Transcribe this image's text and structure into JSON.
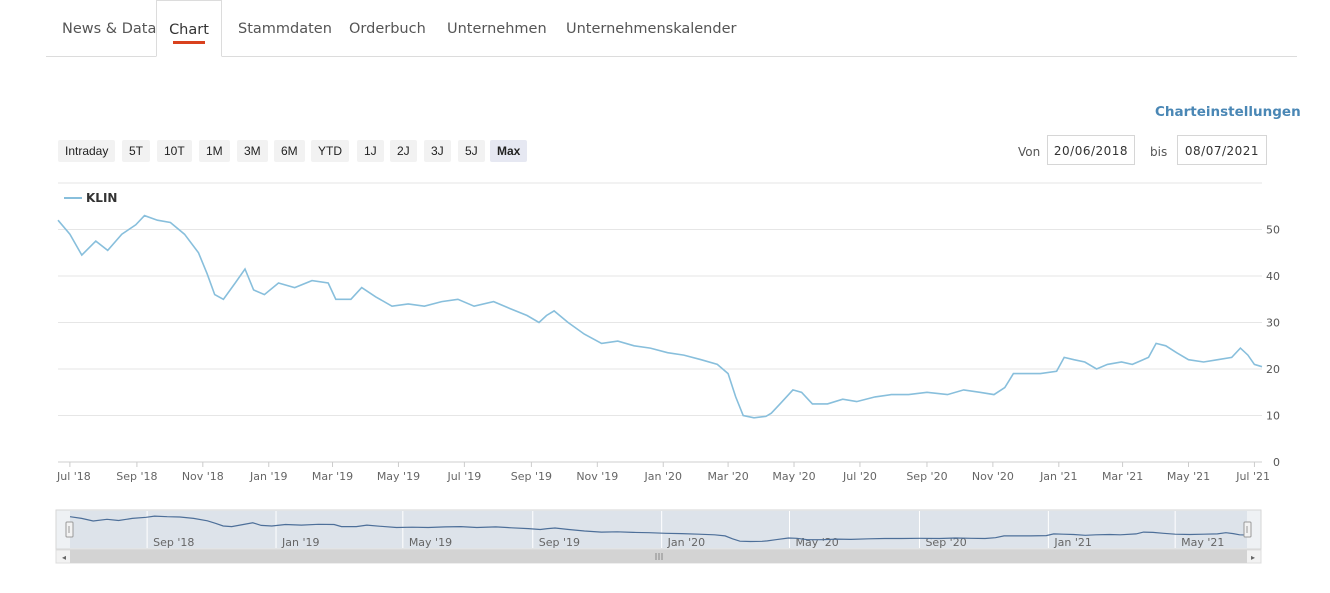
{
  "tabs": [
    {
      "label": "News & Data"
    },
    {
      "label": "Chart"
    },
    {
      "label": "Stammdaten"
    },
    {
      "label": "Orderbuch"
    },
    {
      "label": "Unternehmen"
    },
    {
      "label": "Unternehmenskalender"
    }
  ],
  "active_tab": "Chart",
  "settings_label": "Charteinstellungen",
  "ranges": [
    "Intraday",
    "5T",
    "10T",
    "1M",
    "3M",
    "6M",
    "YTD",
    "1J",
    "2J",
    "3J",
    "5J",
    "Max"
  ],
  "active_range": "Max",
  "date_range": {
    "from_label": "Von",
    "from": "20/06/2018",
    "to_label": "bis",
    "to": "08/07/2021"
  },
  "colors": {
    "line": "#88bfdc",
    "active_underline": "#d9411e",
    "link": "#4a87b5",
    "navigator_mask": "#dde3ea",
    "navigator_line": "#4d6f99"
  },
  "chart_data": {
    "type": "line",
    "legend": "KLIN",
    "legend_position": "top-left",
    "x_start": "2018-06-20",
    "x_end": "2021-07-08",
    "x_ticks": [
      "Jul '18",
      "Sep '18",
      "Nov '18",
      "Jan '19",
      "Mar '19",
      "May '19",
      "Jul '19",
      "Sep '19",
      "Nov '19",
      "Jan '20",
      "Mar '20",
      "May '20",
      "Jul '20",
      "Sep '20",
      "Nov '20",
      "Jan '21",
      "Mar '21",
      "May '21",
      "Jul '21"
    ],
    "y_ticks": [
      0,
      10,
      20,
      30,
      40,
      50
    ],
    "ylim": [
      0,
      60
    ],
    "grid": true,
    "navigator_ticks": [
      "Sep '18",
      "Jan '19",
      "May '19",
      "Sep '19",
      "Jan '20",
      "May '20",
      "Sep '20",
      "Jan '21",
      "May '21"
    ],
    "series": [
      {
        "name": "KLIN",
        "points": [
          [
            "2018-06-20",
            52
          ],
          [
            "2018-07-01",
            49
          ],
          [
            "2018-07-12",
            44.5
          ],
          [
            "2018-07-25",
            47.5
          ],
          [
            "2018-08-05",
            45.5
          ],
          [
            "2018-08-18",
            49
          ],
          [
            "2018-08-31",
            51
          ],
          [
            "2018-09-08",
            53
          ],
          [
            "2018-09-20",
            52
          ],
          [
            "2018-10-02",
            51.5
          ],
          [
            "2018-10-15",
            49
          ],
          [
            "2018-10-28",
            45
          ],
          [
            "2018-11-05",
            40.5
          ],
          [
            "2018-11-12",
            36
          ],
          [
            "2018-11-20",
            35
          ],
          [
            "2018-12-01",
            38.5
          ],
          [
            "2018-12-10",
            41.5
          ],
          [
            "2018-12-18",
            37
          ],
          [
            "2018-12-28",
            36
          ],
          [
            "2019-01-10",
            38.5
          ],
          [
            "2019-01-25",
            37.5
          ],
          [
            "2019-02-10",
            39
          ],
          [
            "2019-02-25",
            38.5
          ],
          [
            "2019-03-04",
            35
          ],
          [
            "2019-03-18",
            35
          ],
          [
            "2019-03-28",
            37.5
          ],
          [
            "2019-04-10",
            35.5
          ],
          [
            "2019-04-25",
            33.5
          ],
          [
            "2019-05-10",
            34
          ],
          [
            "2019-05-25",
            33.5
          ],
          [
            "2019-06-10",
            34.5
          ],
          [
            "2019-06-25",
            35
          ],
          [
            "2019-07-10",
            33.5
          ],
          [
            "2019-07-28",
            34.5
          ],
          [
            "2019-08-12",
            33
          ],
          [
            "2019-08-28",
            31.5
          ],
          [
            "2019-09-08",
            30
          ],
          [
            "2019-09-15",
            31.5
          ],
          [
            "2019-09-22",
            32.5
          ],
          [
            "2019-10-05",
            30
          ],
          [
            "2019-10-20",
            27.5
          ],
          [
            "2019-11-05",
            25.5
          ],
          [
            "2019-11-20",
            26
          ],
          [
            "2019-12-05",
            25
          ],
          [
            "2019-12-20",
            24.5
          ],
          [
            "2020-01-05",
            23.5
          ],
          [
            "2020-01-20",
            23
          ],
          [
            "2020-02-05",
            22
          ],
          [
            "2020-02-20",
            21
          ],
          [
            "2020-03-01",
            19
          ],
          [
            "2020-03-08",
            14
          ],
          [
            "2020-03-15",
            10
          ],
          [
            "2020-03-25",
            9.5
          ],
          [
            "2020-04-05",
            9.8
          ],
          [
            "2020-04-10",
            10.5
          ],
          [
            "2020-04-18",
            12.5
          ],
          [
            "2020-04-30",
            15.5
          ],
          [
            "2020-05-08",
            15
          ],
          [
            "2020-05-18",
            12.5
          ],
          [
            "2020-06-01",
            12.5
          ],
          [
            "2020-06-15",
            13.5
          ],
          [
            "2020-06-28",
            13
          ],
          [
            "2020-07-15",
            14
          ],
          [
            "2020-07-30",
            14.5
          ],
          [
            "2020-08-15",
            14.5
          ],
          [
            "2020-09-01",
            15
          ],
          [
            "2020-09-20",
            14.5
          ],
          [
            "2020-10-05",
            15.5
          ],
          [
            "2020-10-20",
            15
          ],
          [
            "2020-11-02",
            14.5
          ],
          [
            "2020-11-12",
            16
          ],
          [
            "2020-11-20",
            19
          ],
          [
            "2020-12-01",
            19
          ],
          [
            "2020-12-15",
            19
          ],
          [
            "2020-12-30",
            19.5
          ],
          [
            "2021-01-06",
            22.5
          ],
          [
            "2021-01-15",
            22
          ],
          [
            "2021-01-25",
            21.5
          ],
          [
            "2021-02-05",
            20
          ],
          [
            "2021-02-15",
            21
          ],
          [
            "2021-02-28",
            21.5
          ],
          [
            "2021-03-10",
            21
          ],
          [
            "2021-03-25",
            22.5
          ],
          [
            "2021-04-01",
            25.5
          ],
          [
            "2021-04-10",
            25
          ],
          [
            "2021-04-20",
            23.5
          ],
          [
            "2021-05-01",
            22
          ],
          [
            "2021-05-15",
            21.5
          ],
          [
            "2021-05-28",
            22
          ],
          [
            "2021-06-10",
            22.5
          ],
          [
            "2021-06-18",
            24.5
          ],
          [
            "2021-06-25",
            23
          ],
          [
            "2021-07-01",
            21
          ],
          [
            "2021-07-08",
            20.5
          ]
        ]
      }
    ]
  }
}
